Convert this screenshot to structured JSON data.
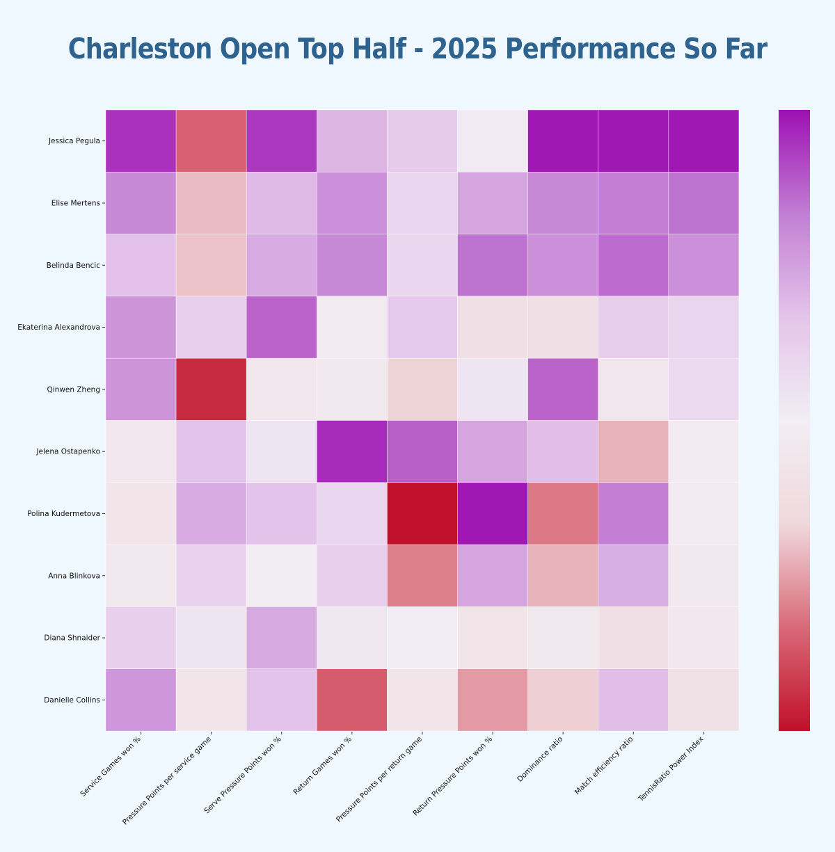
{
  "title": "Charleston Open Top Half - 2025 Performance So Far",
  "chart_data": {
    "type": "heatmap",
    "title": "Charleston Open Top Half - 2025 Performance So Far",
    "xlabel": "",
    "ylabel": "",
    "x_categories": [
      "Service Games won %",
      "Pressure Points per service game",
      "Serve Pressure Points won %",
      "Return Games won %",
      "Pressure Points per return game",
      "Return Pressure Points won %",
      "Dominance ratio",
      "Match efficiency ratio",
      "TennisRatio Power Index"
    ],
    "y_categories": [
      "Jessica Pegula",
      "Elise Mertens",
      "Belinda Bencic",
      "Ekaterina Alexandrova",
      "Qinwen Zheng",
      "Jelena Ostapenko",
      "Polina Kudermetova",
      "Anna Blinkova",
      "Diana Shnaider",
      "Danielle Collins"
    ],
    "values": [
      [
        0.9,
        -0.7,
        0.88,
        0.4,
        0.28,
        0.03,
        0.98,
        0.98,
        0.98
      ],
      [
        0.62,
        -0.42,
        0.38,
        0.58,
        0.2,
        0.48,
        0.62,
        0.66,
        0.7
      ],
      [
        0.35,
        -0.4,
        0.45,
        0.62,
        0.18,
        0.7,
        0.58,
        0.72,
        0.58
      ],
      [
        0.56,
        0.25,
        0.75,
        -0.06,
        0.3,
        -0.22,
        -0.22,
        0.26,
        0.2
      ],
      [
        0.56,
        -0.9,
        -0.1,
        -0.08,
        -0.35,
        0.08,
        0.75,
        -0.12,
        0.16
      ],
      [
        -0.1,
        0.34,
        0.08,
        0.92,
        0.76,
        0.48,
        0.36,
        -0.45,
        -0.03
      ],
      [
        -0.14,
        0.45,
        0.34,
        0.2,
        -1.0,
        0.98,
        -0.62,
        0.66,
        -0.06
      ],
      [
        -0.08,
        0.22,
        -0.02,
        0.24,
        -0.6,
        0.48,
        -0.45,
        0.44,
        -0.08
      ],
      [
        0.24,
        0.08,
        0.46,
        0.06,
        0.01,
        -0.14,
        -0.08,
        -0.22,
        -0.1
      ],
      [
        0.55,
        -0.14,
        0.34,
        -0.72,
        -0.14,
        -0.52,
        -0.36,
        0.36,
        -0.2
      ]
    ],
    "value_range": [
      -1,
      1
    ],
    "colorscale": [
      "#c0102a",
      "#d96a78",
      "#efd8dc",
      "#f2eef4",
      "#e4c4ea",
      "#c27ed3",
      "#9e10b4"
    ],
    "colorbar_tick_labels": false,
    "grid": false,
    "legend": "colorbar-right"
  }
}
